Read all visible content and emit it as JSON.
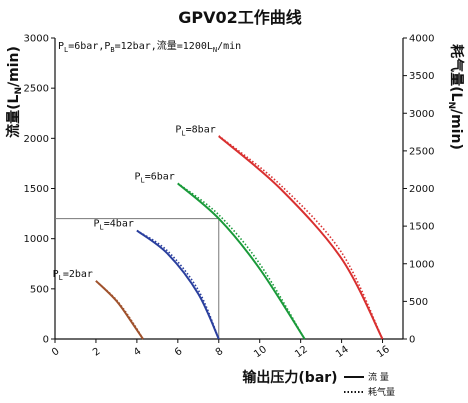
{
  "chart_data": {
    "type": "line",
    "title": "GPV02工作曲线",
    "annotation": {
      "prefix": "P",
      "pl_sub": "L",
      "pl_val": "=6bar,P",
      "pb_sub": "B",
      "pb_val": "=12bar,流量=1200L",
      "n_sub": "N",
      "tail": "/min"
    },
    "xlabel": "输出压力(bar)",
    "ylabel_left": {
      "main": "流量(L",
      "sub": "N",
      "tail": "/min)"
    },
    "ylabel_right": {
      "main": "耗气量(L",
      "sub": "N",
      "tail": "/min)"
    },
    "xlim": [
      0,
      17
    ],
    "ylim_left": [
      0,
      3000
    ],
    "ylim_right": [
      0,
      4000
    ],
    "xticks": [
      0,
      2,
      4,
      6,
      8,
      10,
      12,
      14,
      16
    ],
    "yticks_left": [
      0,
      500,
      1000,
      1500,
      2000,
      2500,
      3000
    ],
    "yticks_right": [
      0,
      500,
      1000,
      1500,
      2000,
      2500,
      3000,
      3500,
      4000
    ],
    "series": [
      {
        "label_main": "P",
        "label_sub": "L",
        "label_tail": "=2bar",
        "color": "#a0522d",
        "flow": [
          [
            2.0,
            580
          ],
          [
            3.0,
            380
          ],
          [
            3.8,
            150
          ],
          [
            4.3,
            0
          ]
        ],
        "air": [
          [
            2.0,
            770
          ],
          [
            3.0,
            520
          ],
          [
            3.8,
            220
          ],
          [
            4.3,
            0
          ]
        ]
      },
      {
        "label_main": "P",
        "label_sub": "L",
        "label_tail": "=4bar",
        "color": "#2a3f9e",
        "flow": [
          [
            4.0,
            1080
          ],
          [
            5.5,
            850
          ],
          [
            7.0,
            450
          ],
          [
            8.0,
            0
          ]
        ],
        "air": [
          [
            4.0,
            1440
          ],
          [
            5.5,
            1170
          ],
          [
            7.0,
            650
          ],
          [
            8.0,
            0
          ]
        ]
      },
      {
        "label_main": "P",
        "label_sub": "L",
        "label_tail": "=6bar",
        "color": "#1a9a3a",
        "flow": [
          [
            6.0,
            1550
          ],
          [
            8.0,
            1200
          ],
          [
            10.0,
            700
          ],
          [
            12.2,
            0
          ]
        ],
        "air": [
          [
            6.0,
            2070
          ],
          [
            8.0,
            1650
          ],
          [
            10.0,
            1000
          ],
          [
            12.2,
            0
          ]
        ]
      },
      {
        "label_main": "P",
        "label_sub": "L",
        "label_tail": "=8bar",
        "color": "#d93030",
        "flow": [
          [
            8.0,
            2020
          ],
          [
            11.0,
            1500
          ],
          [
            14.0,
            800
          ],
          [
            16.0,
            0
          ]
        ],
        "air": [
          [
            8.0,
            2700
          ],
          [
            11.0,
            2050
          ],
          [
            14.0,
            1150
          ],
          [
            16.0,
            0
          ]
        ]
      }
    ],
    "reference_point": {
      "x": 8,
      "y": 1200
    },
    "legend": {
      "flow": "流 量",
      "air": "耗气量",
      "placement": "bottom-right"
    }
  }
}
